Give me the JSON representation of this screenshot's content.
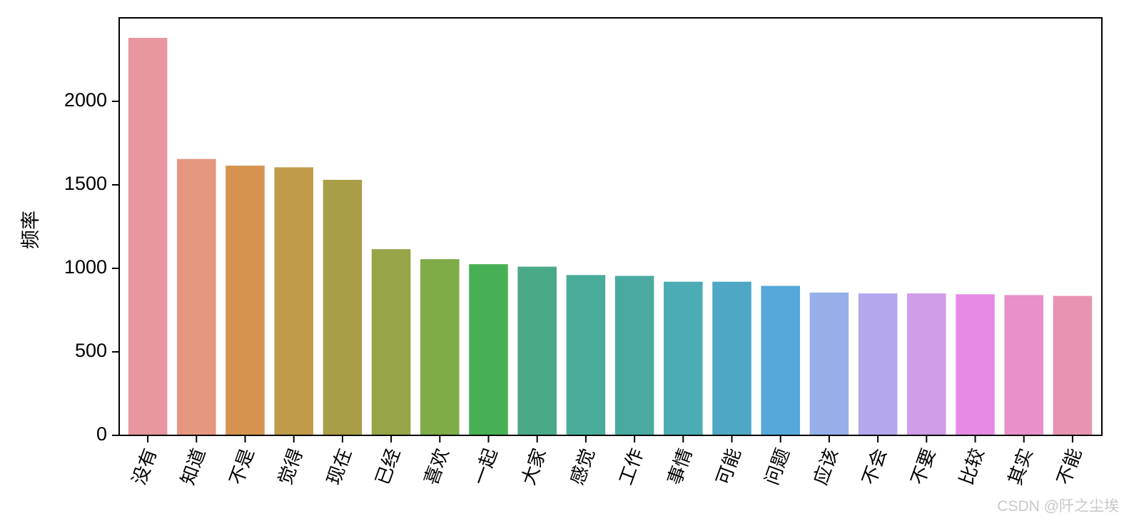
{
  "chart_data": {
    "type": "bar",
    "title": "",
    "xlabel": "",
    "ylabel": "频率",
    "ylim": [
      0,
      2500
    ],
    "yticks": [
      0,
      500,
      1000,
      1500,
      2000
    ],
    "grid": false,
    "categories": [
      "没有",
      "知道",
      "不是",
      "觉得",
      "现在",
      "已经",
      "喜欢",
      "一起",
      "大家",
      "感觉",
      "工作",
      "事情",
      "可能",
      "问题",
      "应该",
      "不会",
      "不要",
      "比较",
      "其实",
      "不能"
    ],
    "values": [
      2380,
      1655,
      1615,
      1605,
      1530,
      1115,
      1055,
      1025,
      1010,
      960,
      955,
      920,
      920,
      895,
      855,
      850,
      850,
      845,
      840,
      835
    ],
    "colors": [
      "#e8969f",
      "#e6977f",
      "#d5934f",
      "#bf9b4a",
      "#a99d47",
      "#97a447",
      "#7fab48",
      "#48b054",
      "#4aa987",
      "#49ac99",
      "#4aaaa2",
      "#4cacb4",
      "#4ea7c4",
      "#56a8db",
      "#95b0e8",
      "#b4a7ee",
      "#cf9de8",
      "#e68ae5",
      "#e98fca",
      "#e893b2"
    ]
  },
  "watermark": "CSDN @阡之尘埃"
}
